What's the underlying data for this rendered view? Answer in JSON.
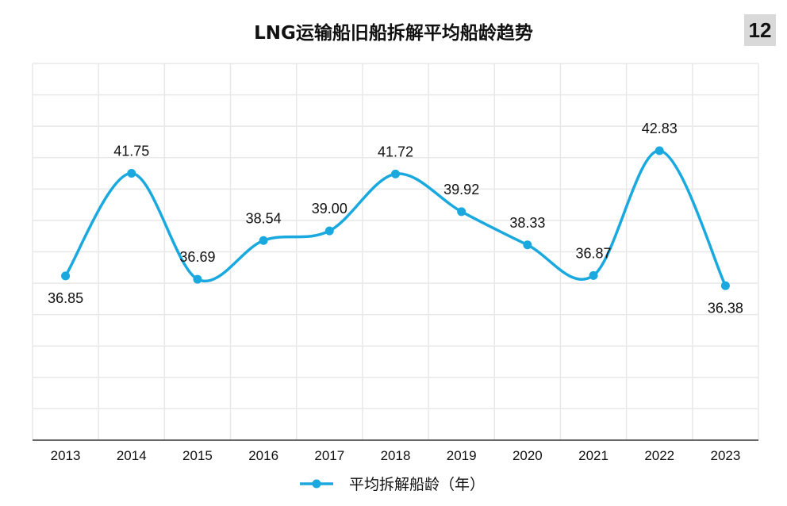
{
  "page_number": "12",
  "chart_data": {
    "type": "line",
    "title": "LNG运输船旧船拆解平均船龄趋势",
    "categories": [
      "2013",
      "2014",
      "2015",
      "2016",
      "2017",
      "2018",
      "2019",
      "2020",
      "2021",
      "2022",
      "2023"
    ],
    "series": [
      {
        "name": "平均拆解船龄（年）",
        "values": [
          36.85,
          41.75,
          36.69,
          38.54,
          39.0,
          41.72,
          39.92,
          38.33,
          36.87,
          42.83,
          36.38
        ],
        "labels": [
          "36.85",
          "41.75",
          "36.69",
          "38.54",
          "39.00",
          "41.72",
          "39.92",
          "38.33",
          "36.87",
          "42.83",
          "36.38"
        ]
      }
    ],
    "ylim": [
      29,
      47
    ],
    "grid": true,
    "smooth": true,
    "legend": "bottom",
    "colors": {
      "line": "#1aa9df",
      "grid": "#e8e8e8",
      "axis": "#333333"
    }
  }
}
